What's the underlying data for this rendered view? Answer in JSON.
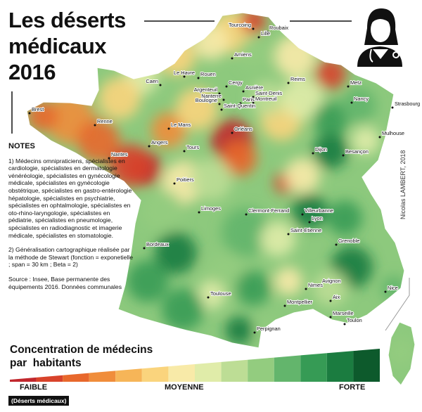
{
  "title": {
    "lines": [
      "Les déserts",
      "médicaux",
      "2016"
    ]
  },
  "notes": {
    "heading": "NOTES",
    "paragraphs": [
      "1) Médecins omnipraticiens, spécialistes en cardiologie, spécialistes en dermatologie vénéréologie, spécialistes en gynécologie médicale, spécialistes en gynécologie obstétrique, spécialistes en gastro-entérologie hépatologie, spécialistes en psychiatrie, spécialistes en ophtalmologie, spécialistes en oto-rhino-laryngologie, spécialistes en pédiatrie, spécialistes en pneumologie, spécialistes en radiodiagnostic et imagerie médicale, spécialistes en stomatologie.",
      "2) Généralisation cartographique réalisée par la méthode de Stewart (fonction = exponetielle ; span = 30 km ; Beta = 2)",
      "Source : Insee, Base permanente des équipements 2016. Données communales"
    ]
  },
  "credit": "Nicolas LAMBERT, 2018",
  "legend": {
    "title_lines": [
      "Concentration de médecins",
      "par  habitants"
    ],
    "low": "FAIBLE",
    "mid": "MOYENNE",
    "high": "FORTE",
    "low_note": "(Déserts médicaux)",
    "colors": [
      "#c1272d",
      "#d8432b",
      "#e8682c",
      "#f08d3b",
      "#f6b558",
      "#fad47d",
      "#f8eaa8",
      "#e0eca9",
      "#bddd95",
      "#93cc7f",
      "#63b56c",
      "#369b55",
      "#1b7c40",
      "#0d5a2c"
    ]
  },
  "map": {
    "cities": [
      "Tourcoing",
      "Roubaix",
      "Lille",
      "Amiens",
      "Le Havre",
      "Caen",
      "Rouen",
      "Reims",
      "Metz",
      "Brest",
      "Cergy",
      "Asnière",
      "Argenteuil",
      "Saint-Denis",
      "Nanterre",
      "Montreuil",
      "Boulogne",
      "Paris",
      "Saint-Quentin",
      "Nancy",
      "Strasbourg",
      "Renne",
      "Le Mans",
      "Orléans",
      "Mulhouse",
      "Angers",
      "Tours",
      "Dijon",
      "Besançon",
      "Nantes",
      "Poitiers",
      "Limoges",
      "Clermont-Ferrand",
      "Villeurbanne",
      "Lyon",
      "Saint-Etienne",
      "Bordeaux",
      "Grenoble",
      "Avignon",
      "Nimes",
      "Toulouse",
      "Montpellier",
      "Aix",
      "Marseille",
      "Nice",
      "Toulon",
      "Perpignan"
    ]
  }
}
